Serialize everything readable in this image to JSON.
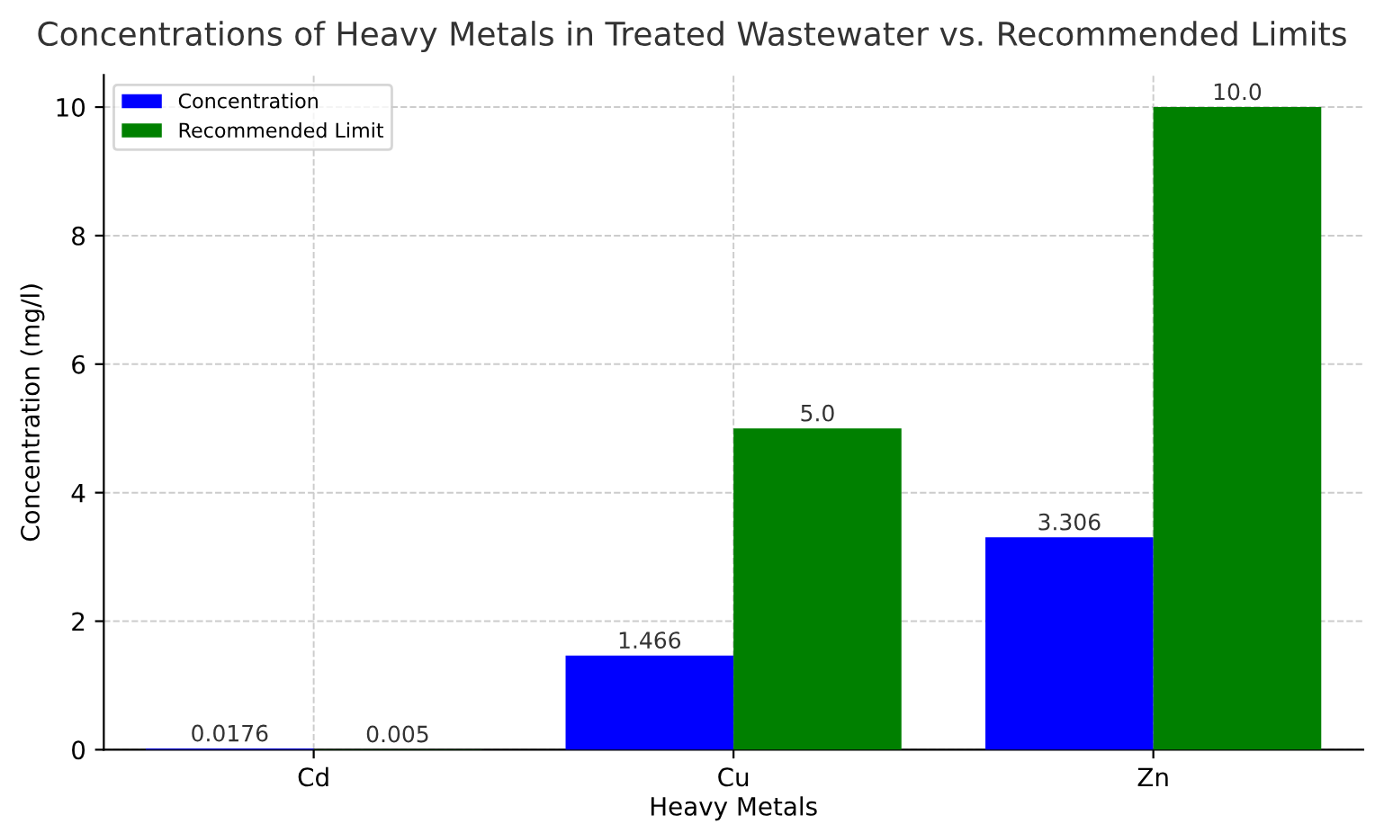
{
  "chart_data": {
    "type": "bar",
    "title": "Concentrations of Heavy Metals in Treated Wastewater vs. Recommended Limits",
    "xlabel": "Heavy Metals",
    "ylabel": "Concentration (mg/l)",
    "categories": [
      "Cd",
      "Cu",
      "Zn"
    ],
    "series": [
      {
        "name": "Concentration",
        "color": "#0000ff",
        "values": [
          0.0176,
          1.466,
          3.306
        ],
        "value_labels": [
          "0.0176",
          "1.466",
          "3.306"
        ]
      },
      {
        "name": "Recommended Limit",
        "color": "#008000",
        "values": [
          0.005,
          5.0,
          10.0
        ],
        "value_labels": [
          "0.005",
          "5.0",
          "10.0"
        ]
      }
    ],
    "ylim": [
      0,
      10.5
    ],
    "yticks": [
      0,
      2,
      4,
      6,
      8,
      10
    ],
    "grid": true,
    "legend": "top left"
  }
}
